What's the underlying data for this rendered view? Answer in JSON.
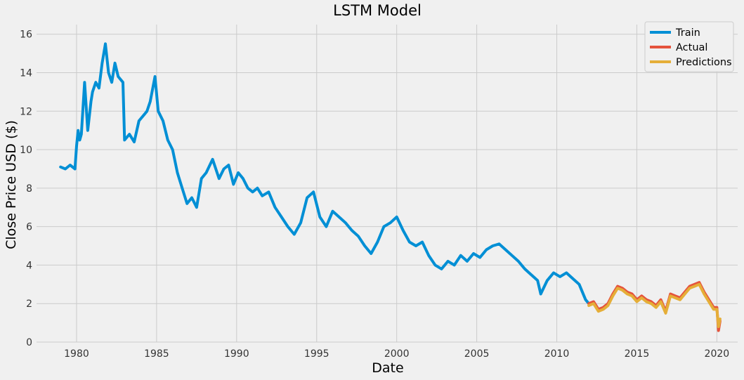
{
  "chart_data": {
    "type": "line",
    "title": "LSTM Model",
    "xlabel": "Date",
    "ylabel": "Close Price USD ($)",
    "xlim": [
      1977.5,
      2021.3
    ],
    "ylim": [
      0,
      16.5
    ],
    "xticks": [
      1980,
      1985,
      1990,
      1995,
      2000,
      2005,
      2010,
      2015,
      2020
    ],
    "yticks": [
      0,
      2,
      4,
      6,
      8,
      10,
      12,
      14,
      16
    ],
    "grid": true,
    "legend_position": "top-right",
    "series": [
      {
        "name": "Train",
        "color": "#008fd5",
        "x": [
          1979.0,
          1979.3,
          1979.6,
          1979.9,
          1980.0,
          1980.1,
          1980.2,
          1980.3,
          1980.5,
          1980.7,
          1980.9,
          1981.0,
          1981.2,
          1981.4,
          1981.6,
          1981.8,
          1982.0,
          1982.2,
          1982.4,
          1982.6,
          1982.9,
          1983.0,
          1983.3,
          1983.6,
          1983.9,
          1984.2,
          1984.4,
          1984.6,
          1984.9,
          1985.1,
          1985.4,
          1985.7,
          1986.0,
          1986.3,
          1986.6,
          1986.9,
          1987.2,
          1987.5,
          1987.8,
          1988.1,
          1988.5,
          1988.9,
          1989.2,
          1989.5,
          1989.8,
          1990.1,
          1990.4,
          1990.7,
          1991.0,
          1991.3,
          1991.6,
          1992.0,
          1992.4,
          1992.8,
          1993.2,
          1993.6,
          1994.0,
          1994.4,
          1994.8,
          1995.2,
          1995.6,
          1996.0,
          1996.4,
          1996.8,
          1997.2,
          1997.6,
          1998.0,
          1998.4,
          1998.8,
          1999.2,
          1999.6,
          2000.0,
          2000.4,
          2000.8,
          2001.2,
          2001.6,
          2002.0,
          2002.4,
          2002.8,
          2003.2,
          2003.6,
          2004.0,
          2004.4,
          2004.8,
          2005.2,
          2005.6,
          2006.0,
          2006.4,
          2006.8,
          2007.2,
          2007.6,
          2008.0,
          2008.4,
          2008.8,
          2009.0,
          2009.4,
          2009.8,
          2010.2,
          2010.6,
          2011.0,
          2011.4,
          2011.8,
          2012.0
        ],
        "y": [
          9.1,
          9.0,
          9.2,
          9.0,
          10.2,
          11.0,
          10.5,
          10.8,
          13.5,
          11.0,
          12.5,
          13.0,
          13.5,
          13.2,
          14.5,
          15.5,
          14.0,
          13.5,
          14.5,
          13.8,
          13.5,
          10.5,
          10.8,
          10.4,
          11.5,
          11.8,
          12.0,
          12.5,
          13.8,
          12.0,
          11.5,
          10.5,
          10.0,
          8.8,
          8.0,
          7.2,
          7.5,
          7.0,
          8.5,
          8.8,
          9.5,
          8.5,
          9.0,
          9.2,
          8.2,
          8.8,
          8.5,
          8.0,
          7.8,
          8.0,
          7.6,
          7.8,
          7.0,
          6.5,
          6.0,
          5.6,
          6.2,
          7.5,
          7.8,
          6.5,
          6.0,
          6.8,
          6.5,
          6.2,
          5.8,
          5.5,
          5.0,
          4.6,
          5.2,
          6.0,
          6.2,
          6.5,
          5.8,
          5.2,
          5.0,
          5.2,
          4.5,
          4.0,
          3.8,
          4.2,
          4.0,
          4.5,
          4.2,
          4.6,
          4.4,
          4.8,
          5.0,
          5.1,
          4.8,
          4.5,
          4.2,
          3.8,
          3.5,
          3.2,
          2.5,
          3.2,
          3.6,
          3.4,
          3.6,
          3.3,
          3.0,
          2.2,
          2.0
        ]
      },
      {
        "name": "Actual",
        "color": "#e5533c",
        "x": [
          2012.0,
          2012.3,
          2012.6,
          2012.9,
          2013.2,
          2013.5,
          2013.8,
          2014.1,
          2014.4,
          2014.7,
          2015.0,
          2015.3,
          2015.6,
          2015.9,
          2016.2,
          2016.5,
          2016.8,
          2017.1,
          2017.4,
          2017.7,
          2018.0,
          2018.3,
          2018.6,
          2018.9,
          2019.2,
          2019.5,
          2019.8,
          2020.0,
          2020.1,
          2020.2
        ],
        "y": [
          2.0,
          2.1,
          1.7,
          1.8,
          2.0,
          2.5,
          2.9,
          2.8,
          2.6,
          2.5,
          2.2,
          2.4,
          2.2,
          2.1,
          1.9,
          2.2,
          1.6,
          2.5,
          2.4,
          2.3,
          2.6,
          2.9,
          3.0,
          3.1,
          2.6,
          2.2,
          1.8,
          1.8,
          0.6,
          1.1
        ]
      },
      {
        "name": "Predictions",
        "color": "#e5ae38",
        "x": [
          2012.0,
          2012.3,
          2012.6,
          2012.9,
          2013.2,
          2013.5,
          2013.8,
          2014.1,
          2014.4,
          2014.7,
          2015.0,
          2015.3,
          2015.6,
          2015.9,
          2016.2,
          2016.5,
          2016.8,
          2017.1,
          2017.4,
          2017.7,
          2018.0,
          2018.3,
          2018.6,
          2018.9,
          2019.2,
          2019.5,
          2019.8,
          2020.0,
          2020.1,
          2020.2
        ],
        "y": [
          1.9,
          2.0,
          1.6,
          1.7,
          1.9,
          2.4,
          2.8,
          2.7,
          2.5,
          2.4,
          2.1,
          2.3,
          2.1,
          2.0,
          1.8,
          2.1,
          1.5,
          2.4,
          2.3,
          2.2,
          2.5,
          2.8,
          2.9,
          3.0,
          2.5,
          2.1,
          1.7,
          1.7,
          0.8,
          1.2
        ]
      }
    ]
  }
}
